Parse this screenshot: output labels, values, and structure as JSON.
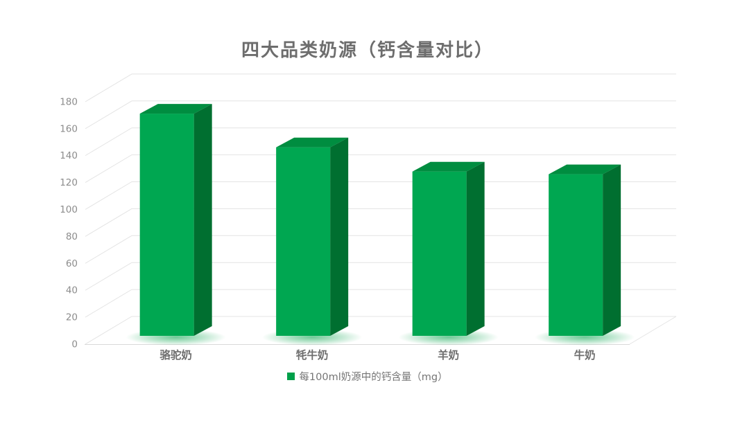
{
  "title": "四大品类奶源（钙含量对比）",
  "colors": {
    "bar_front": "#00A751",
    "bar_top": "#008D40",
    "bar_side": "#006F30",
    "glow": "#3DB873",
    "grid": "#E4E4E4",
    "floor_edge": "#D9D9D9",
    "axis_text": "#8C8C8C",
    "title_text": "#6D6D6D",
    "category_text": "#6E6E6E",
    "legend_text": "#757575",
    "legend_marker": "#00A04A"
  },
  "chart_data": {
    "type": "bar",
    "style": "3d-column",
    "title": "四大品类奶源（钙含量对比）",
    "categories": [
      "骆驼奶",
      "牦牛奶",
      "羊奶",
      "牛奶"
    ],
    "series": [
      {
        "name": "每100ml奶源中的钙含量（mg）",
        "values": [
          165,
          140,
          122,
          120
        ]
      }
    ],
    "xlabel": "",
    "ylabel": "",
    "ylim": [
      0,
      180
    ],
    "yticks": [
      0,
      20,
      40,
      60,
      80,
      100,
      120,
      140,
      160,
      180
    ],
    "grid": true,
    "legend_position": "bottom"
  },
  "legend": {
    "marker": "green-square",
    "label": "每100ml奶源中的钙含量（mg）"
  }
}
